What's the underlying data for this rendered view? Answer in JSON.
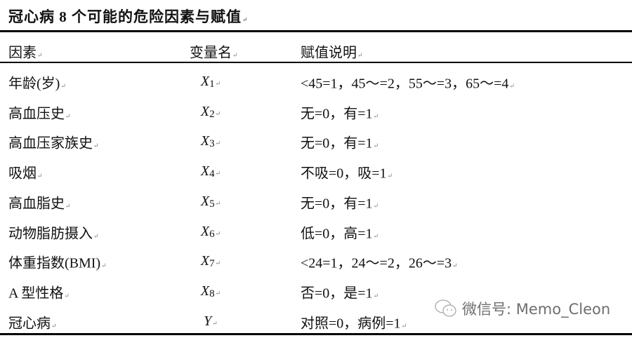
{
  "title": "冠心病 8 个可能的危险因素与赋值",
  "headers": {
    "factor": "因素",
    "variable": "变量名",
    "assignment": "赋值说明"
  },
  "rows": [
    {
      "factor": "年龄(岁)",
      "var": "X",
      "sub": "1",
      "assignment": "<45=1，45～=2，55～=3，65～=4"
    },
    {
      "factor": "高血压史",
      "var": "X",
      "sub": "2",
      "assignment": "无=0，有=1"
    },
    {
      "factor": "高血压家族史",
      "var": "X",
      "sub": "3",
      "assignment": "无=0，有=1"
    },
    {
      "factor": "吸烟",
      "var": "X",
      "sub": "4",
      "assignment": "不吸=0，吸=1"
    },
    {
      "factor": "高血脂史",
      "var": "X",
      "sub": "5",
      "assignment": "无=0，有=1"
    },
    {
      "factor": "动物脂肪摄入",
      "var": "X",
      "sub": "6",
      "assignment": "低=0，高=1"
    },
    {
      "factor": "体重指数(BMI)",
      "var": "X",
      "sub": "7",
      "assignment": "<24=1，24～=2，26～=3"
    },
    {
      "factor": "A 型性格",
      "var": "X",
      "sub": "8",
      "assignment": "否=0，是=1"
    },
    {
      "factor": "冠心病",
      "var": "Y",
      "sub": "",
      "assignment": "对照=0，病例=1"
    }
  ],
  "watermark": {
    "icon": "wechat-icon",
    "text": "微信号: Memo_Cleon"
  }
}
